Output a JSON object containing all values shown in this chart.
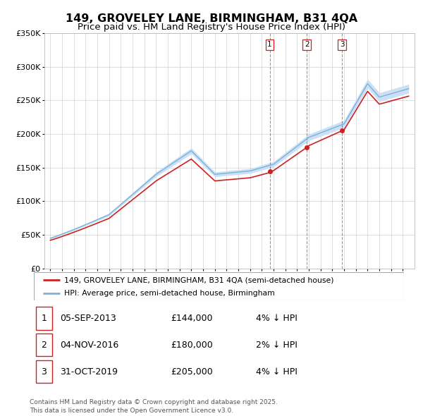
{
  "title": "149, GROVELEY LANE, BIRMINGHAM, B31 4QA",
  "subtitle": "Price paid vs. HM Land Registry's House Price Index (HPI)",
  "ylim": [
    0,
    350000
  ],
  "yticks": [
    0,
    50000,
    100000,
    150000,
    200000,
    250000,
    300000,
    350000
  ],
  "ytick_labels": [
    "£0",
    "£50K",
    "£100K",
    "£150K",
    "£200K",
    "£250K",
    "£300K",
    "£350K"
  ],
  "xlim_start": 1994.5,
  "xlim_end": 2026.0,
  "hpi_band_color": "#cce0f5",
  "hpi_line_color": "#7ab3d8",
  "price_color": "#cc2222",
  "sale_dates": [
    2013.67,
    2016.83,
    2019.83
  ],
  "sale_labels": [
    "1",
    "2",
    "3"
  ],
  "sale_prices": [
    144000,
    180000,
    205000
  ],
  "legend_price_label": "149, GROVELEY LANE, BIRMINGHAM, B31 4QA (semi-detached house)",
  "legend_hpi_label": "HPI: Average price, semi-detached house, Birmingham",
  "table_rows": [
    {
      "num": "1",
      "date": "05-SEP-2013",
      "price": "£144,000",
      "pct": "4% ↓ HPI"
    },
    {
      "num": "2",
      "date": "04-NOV-2016",
      "price": "£180,000",
      "pct": "2% ↓ HPI"
    },
    {
      "num": "3",
      "date": "31-OCT-2019",
      "price": "£205,000",
      "pct": "4% ↓ HPI"
    }
  ],
  "footer": "Contains HM Land Registry data © Crown copyright and database right 2025.\nThis data is licensed under the Open Government Licence v3.0.",
  "bg_color": "#ffffff",
  "grid_color": "#d0d0d0"
}
